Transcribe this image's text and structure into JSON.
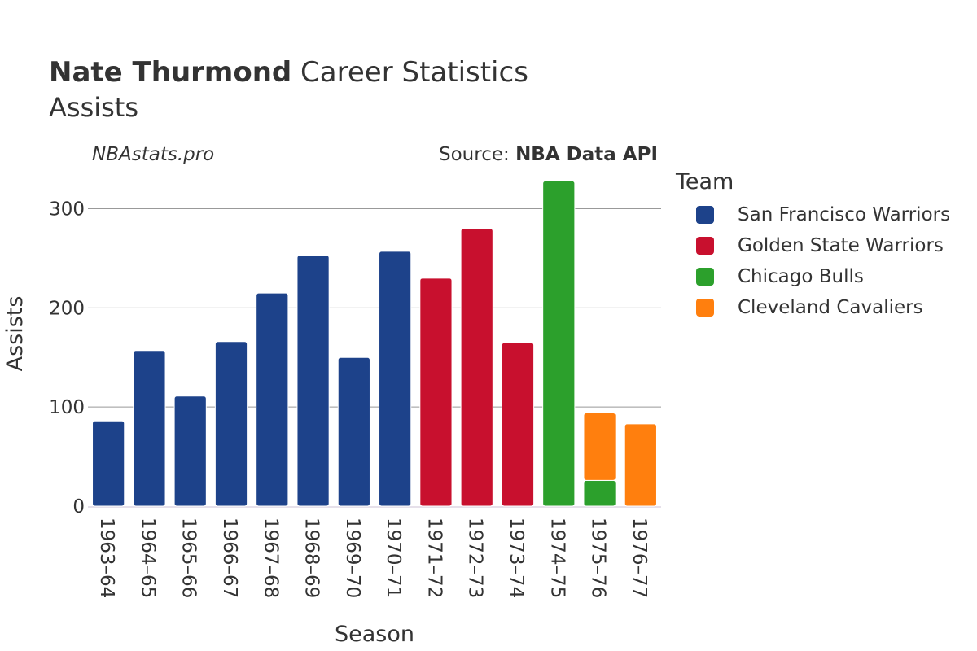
{
  "header": {
    "title_bold": "Nate Thurmond",
    "title_rest": " Career Statistics",
    "subtitle": "Assists",
    "watermark": "NBAstats.pro",
    "source_prefix": "Source: ",
    "source_name": "NBA Data API"
  },
  "legend": {
    "title": "Team",
    "items": [
      {
        "label": "San Francisco Warriors",
        "color": "#1d428a"
      },
      {
        "label": "Golden State Warriors",
        "color": "#c8102e"
      },
      {
        "label": "Chicago Bulls",
        "color": "#2ca02c"
      },
      {
        "label": "Cleveland Cavaliers",
        "color": "#ff7f0e"
      }
    ]
  },
  "chart_data": {
    "type": "bar",
    "stacked": true,
    "xlabel": "Season",
    "ylabel": "Assists",
    "ylim": [
      0,
      330
    ],
    "yticks": [
      0,
      100,
      200,
      300
    ],
    "categories": [
      "1963–64",
      "1964–65",
      "1965–66",
      "1966–67",
      "1967–68",
      "1968–69",
      "1969–70",
      "1970–71",
      "1971–72",
      "1972–73",
      "1973–74",
      "1974–75",
      "1975–76",
      "1976–77"
    ],
    "series": [
      {
        "name": "San Francisco Warriors",
        "color": "#1d428a",
        "values": [
          86,
          157,
          111,
          166,
          215,
          253,
          150,
          257,
          0,
          0,
          0,
          0,
          0,
          0
        ]
      },
      {
        "name": "Golden State Warriors",
        "color": "#c8102e",
        "values": [
          0,
          0,
          0,
          0,
          0,
          0,
          0,
          0,
          230,
          280,
          165,
          0,
          0,
          0
        ]
      },
      {
        "name": "Chicago Bulls",
        "color": "#2ca02c",
        "values": [
          0,
          0,
          0,
          0,
          0,
          0,
          0,
          0,
          0,
          0,
          0,
          328,
          26,
          0
        ]
      },
      {
        "name": "Cleveland Cavaliers",
        "color": "#ff7f0e",
        "values": [
          0,
          0,
          0,
          0,
          0,
          0,
          0,
          0,
          0,
          0,
          0,
          0,
          68,
          83
        ]
      }
    ],
    "grid": true,
    "legend_position": "right"
  }
}
